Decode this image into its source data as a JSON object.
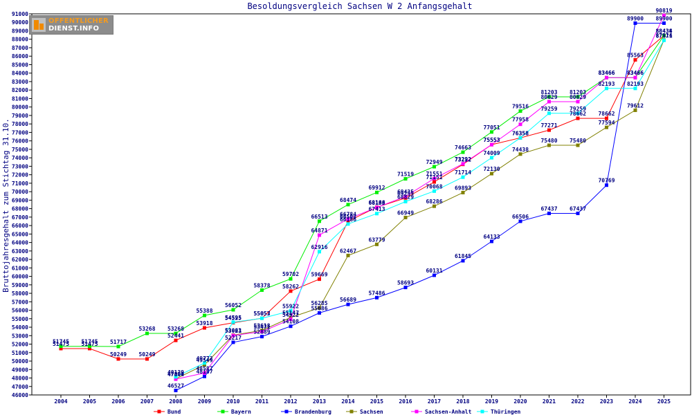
{
  "logo": {
    "line1": "OFFENTLICHER",
    "line2": "DIENST.INFO"
  },
  "chart_data": {
    "type": "line",
    "title": "Besoldungsvergleich Sachsen W 2 Anfangsgehalt",
    "xlabel": "",
    "ylabel": "Bruttojahresgehalt zum Stichtag 31.10.",
    "ylim": [
      46000,
      91000
    ],
    "ytick_step": 1000,
    "grid": false,
    "legend_position": "bottom",
    "categories": [
      "2004",
      "2005",
      "2006",
      "2007",
      "2008",
      "2009",
      "2010",
      "2011",
      "2012",
      "2013",
      "2014",
      "2015",
      "2016",
      "2017",
      "2018",
      "2019",
      "2020",
      "2021",
      "2022",
      "2023",
      "2024",
      "2025"
    ],
    "series": [
      {
        "name": "Bund",
        "color": "#ff0000",
        "values": [
          51475,
          51475,
          50249,
          50249,
          52441,
          53918,
          54525,
          55057,
          58262,
          59669,
          66508,
          68166,
          69255,
          71151,
          73222,
          75553,
          76358,
          77271,
          78662,
          78662,
          85563,
          88434
        ]
      },
      {
        "name": "Bayern",
        "color": "#00ee00",
        "values": [
          51745,
          51745,
          51717,
          53268,
          53268,
          55388,
          56052,
          58378,
          59702,
          66513,
          68474,
          69912,
          71519,
          72949,
          74663,
          77051,
          79516,
          81203,
          81203,
          83466,
          83466,
          88438
        ]
      },
      {
        "name": "Brandenburg",
        "color": "#0000ff",
        "values": [
          null,
          null,
          null,
          null,
          46527,
          48187,
          52217,
          52889,
          54108,
          55686,
          56689,
          57486,
          58693,
          60131,
          61845,
          64133,
          66506,
          67437,
          67437,
          70769,
          89900,
          89900
        ]
      },
      {
        "name": "Sachsen",
        "color": "#808000",
        "values": [
          null,
          null,
          null,
          null,
          47899,
          49549,
          53063,
          53618,
          55147,
          56285,
          62467,
          63779,
          66949,
          68286,
          69893,
          72130,
          74438,
          75480,
          75480,
          77594,
          79612,
          87914
        ]
      },
      {
        "name": "Sachsen-Anhalt",
        "color": "#ff00ff",
        "values": [
          null,
          null,
          null,
          null,
          47864,
          48587,
          53021,
          53471,
          54922,
          64871,
          66784,
          68133,
          69435,
          71551,
          73292,
          75553,
          77958,
          80629,
          80629,
          83466,
          83466,
          90819
        ]
      },
      {
        "name": "Thüringen",
        "color": "#00ffff",
        "values": [
          null,
          null,
          null,
          null,
          48139,
          49772,
          54595,
          55053,
          55922,
          62916,
          66186,
          67413,
          68829,
          70068,
          71714,
          74009,
          76358,
          79259,
          79259,
          82193,
          82193,
          87871
        ]
      }
    ]
  }
}
